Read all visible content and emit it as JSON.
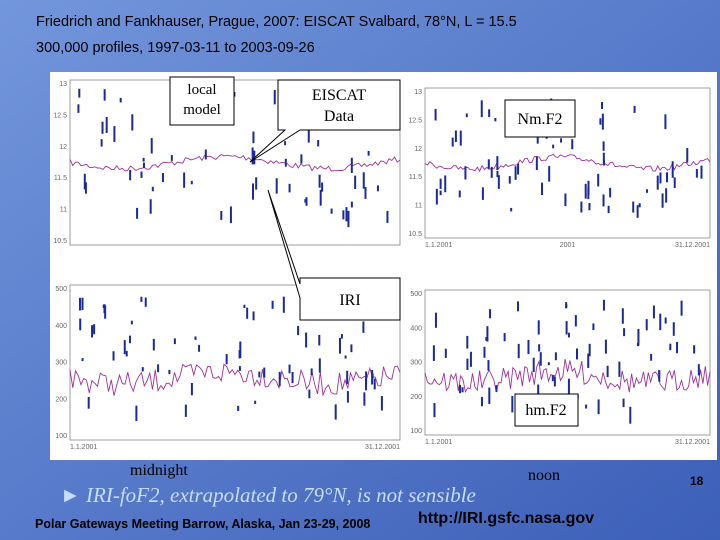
{
  "slide": {
    "title_line1": "Friedrich and Fankhauser, Prague, 2007: EISCAT Svalbard, 78°N, L = 15.5",
    "title_line2": "300,000 profiles, 1997-03-11 to 2003-09-26",
    "callouts": {
      "local_model": [
        "local",
        "model"
      ],
      "eiscat": [
        "EISCAT",
        "Data"
      ],
      "nmf2": "Nm.F2",
      "iri": "IRI",
      "hmf2": "hm.F2"
    },
    "plots": {
      "top_left": {
        "yticks": [
          "13",
          "12.5",
          "12",
          "11.5",
          "11",
          "10.5"
        ]
      },
      "top_right": {
        "yticks": [
          "13",
          "12.5",
          "12",
          "11.5",
          "11",
          "10.5"
        ],
        "xlabels": [
          "1.1.2001",
          "2001",
          "31.12.2001"
        ]
      },
      "bottom_left": {
        "yticks": [
          "500",
          "400",
          "300",
          "200",
          "100"
        ],
        "xlabels": [
          "1.1.2001",
          "31.12.2001"
        ]
      },
      "bottom_right": {
        "yticks": [
          "500",
          "400",
          "300",
          "200",
          "100"
        ],
        "xlabels": [
          "1.1.2001",
          "31.12.2001"
        ]
      }
    },
    "midnight": "midnight",
    "noon": "noon",
    "conclusion": "► IRI-foF2, extrapolated to 79°N, is not sensible",
    "footer": "Polar Gateways Meeting Barrow, Alaska, Jan 23-29, 2008",
    "url": "http://IRI.gsfc.nasa.gov",
    "page_number": "18"
  }
}
